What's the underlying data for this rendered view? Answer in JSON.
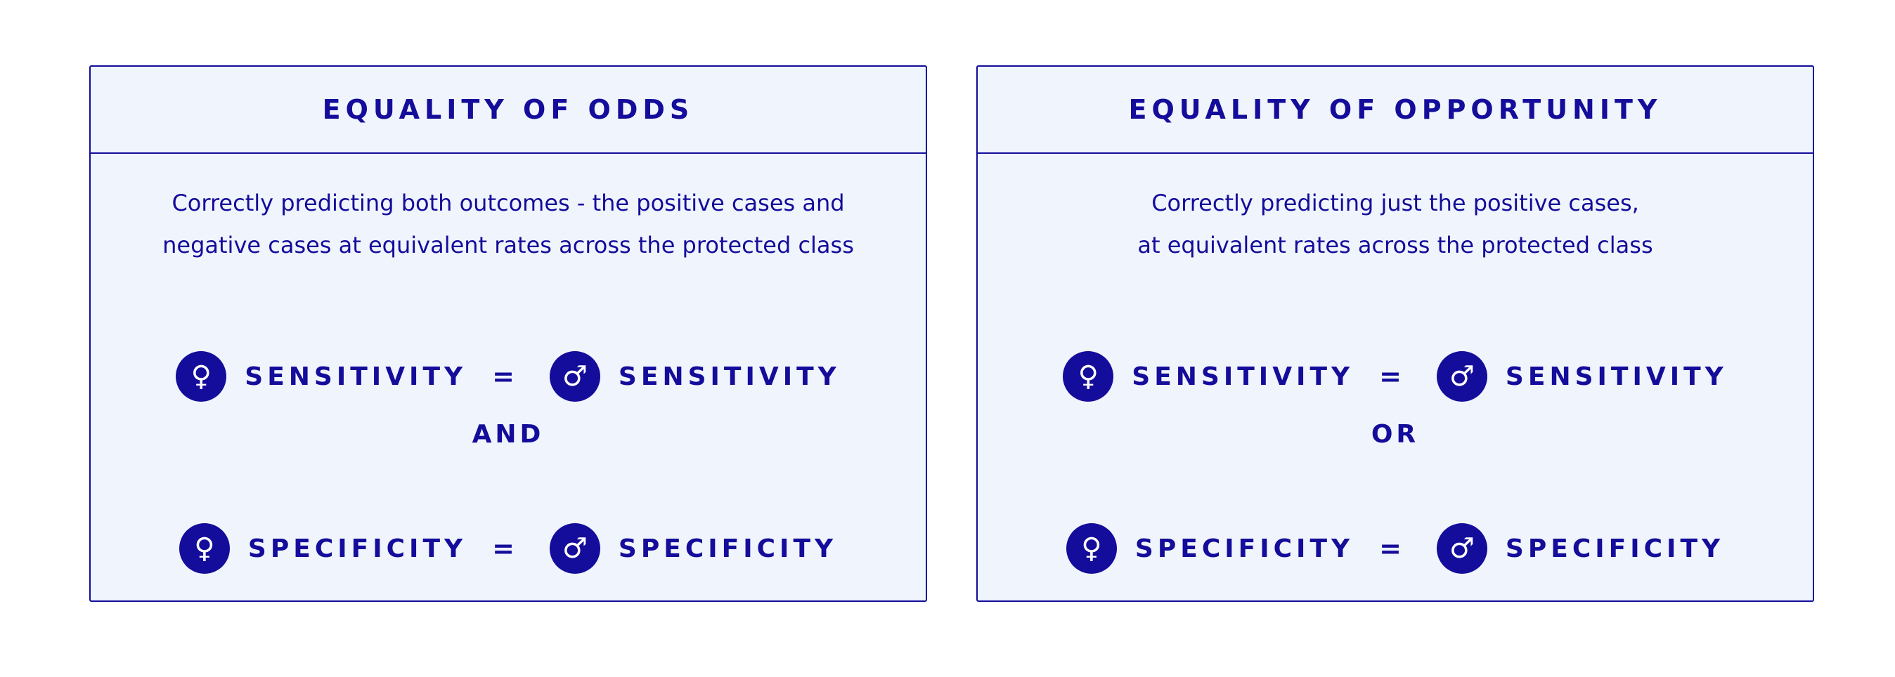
{
  "colors": {
    "accent": "#140c9a",
    "card_bg": "#f0f4fc"
  },
  "icons": {
    "female": "female-symbol-icon",
    "male": "male-symbol-icon"
  },
  "glyphs": {
    "female": "♀",
    "male": "♂"
  },
  "cards": [
    {
      "title": "EQUALITY OF ODDS",
      "desc_lines": [
        "Correctly predicting both outcomes - the positive cases and",
        "negative cases at equivalent rates across the protected class"
      ],
      "row1": {
        "left": "SENSITIVITY",
        "eq": "=",
        "right": "SENSITIVITY"
      },
      "conjunction": "AND",
      "row2": {
        "left": "SPECIFICITY",
        "eq": "=",
        "right": "SPECIFICITY"
      }
    },
    {
      "title": "EQUALITY OF OPPORTUNITY",
      "desc_lines": [
        "Correctly predicting just the positive cases,",
        "at equivalent rates across the protected class"
      ],
      "row1": {
        "left": "SENSITIVITY",
        "eq": "=",
        "right": "SENSITIVITY"
      },
      "conjunction": "OR",
      "row2": {
        "left": "SPECIFICITY",
        "eq": "=",
        "right": "SPECIFICITY"
      }
    }
  ]
}
